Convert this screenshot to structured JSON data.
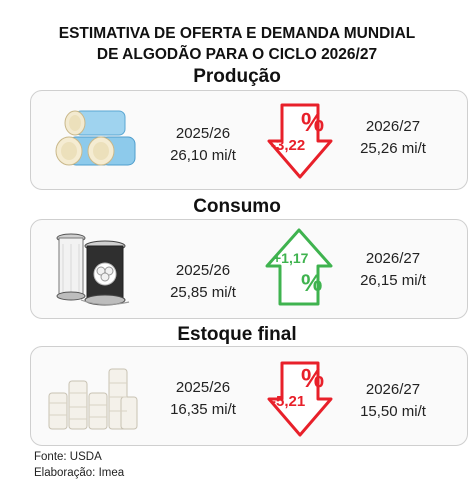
{
  "title_line1": "ESTIMATIVA DE OFERTA E DEMANDA MUNDIAL",
  "title_line2": "DE ALGODÃO PARA O CICLO 2026/27",
  "colors": {
    "down": "#e8202a",
    "up": "#3fb34f",
    "text": "#222222",
    "border": "#cfcfcf"
  },
  "sections": [
    {
      "heading": "Produção",
      "icon": "cotton-bales-icon",
      "prev_year": "2025/26",
      "prev_value": "26,10 mi/t",
      "change": "-3,22",
      "percent_sign": "%",
      "direction": "down",
      "next_year": "2026/27",
      "next_value": "25,26 mi/t"
    },
    {
      "heading": "Consumo",
      "icon": "thread-spools-icon",
      "prev_year": "2025/26",
      "prev_value": "25,85 mi/t",
      "change": "+1,17",
      "percent_sign": "%",
      "direction": "up",
      "next_year": "2026/27",
      "next_value": "26,15 mi/t"
    },
    {
      "heading": "Estoque final",
      "icon": "cotton-stock-bales-icon",
      "prev_year": "2025/26",
      "prev_value": "16,35 mi/t",
      "change": "-5,21",
      "percent_sign": "%",
      "direction": "down",
      "next_year": "2026/27",
      "next_value": "15,50 mi/t"
    }
  ],
  "source": "Fonte: USDA",
  "credit": "Elaboração: Imea"
}
